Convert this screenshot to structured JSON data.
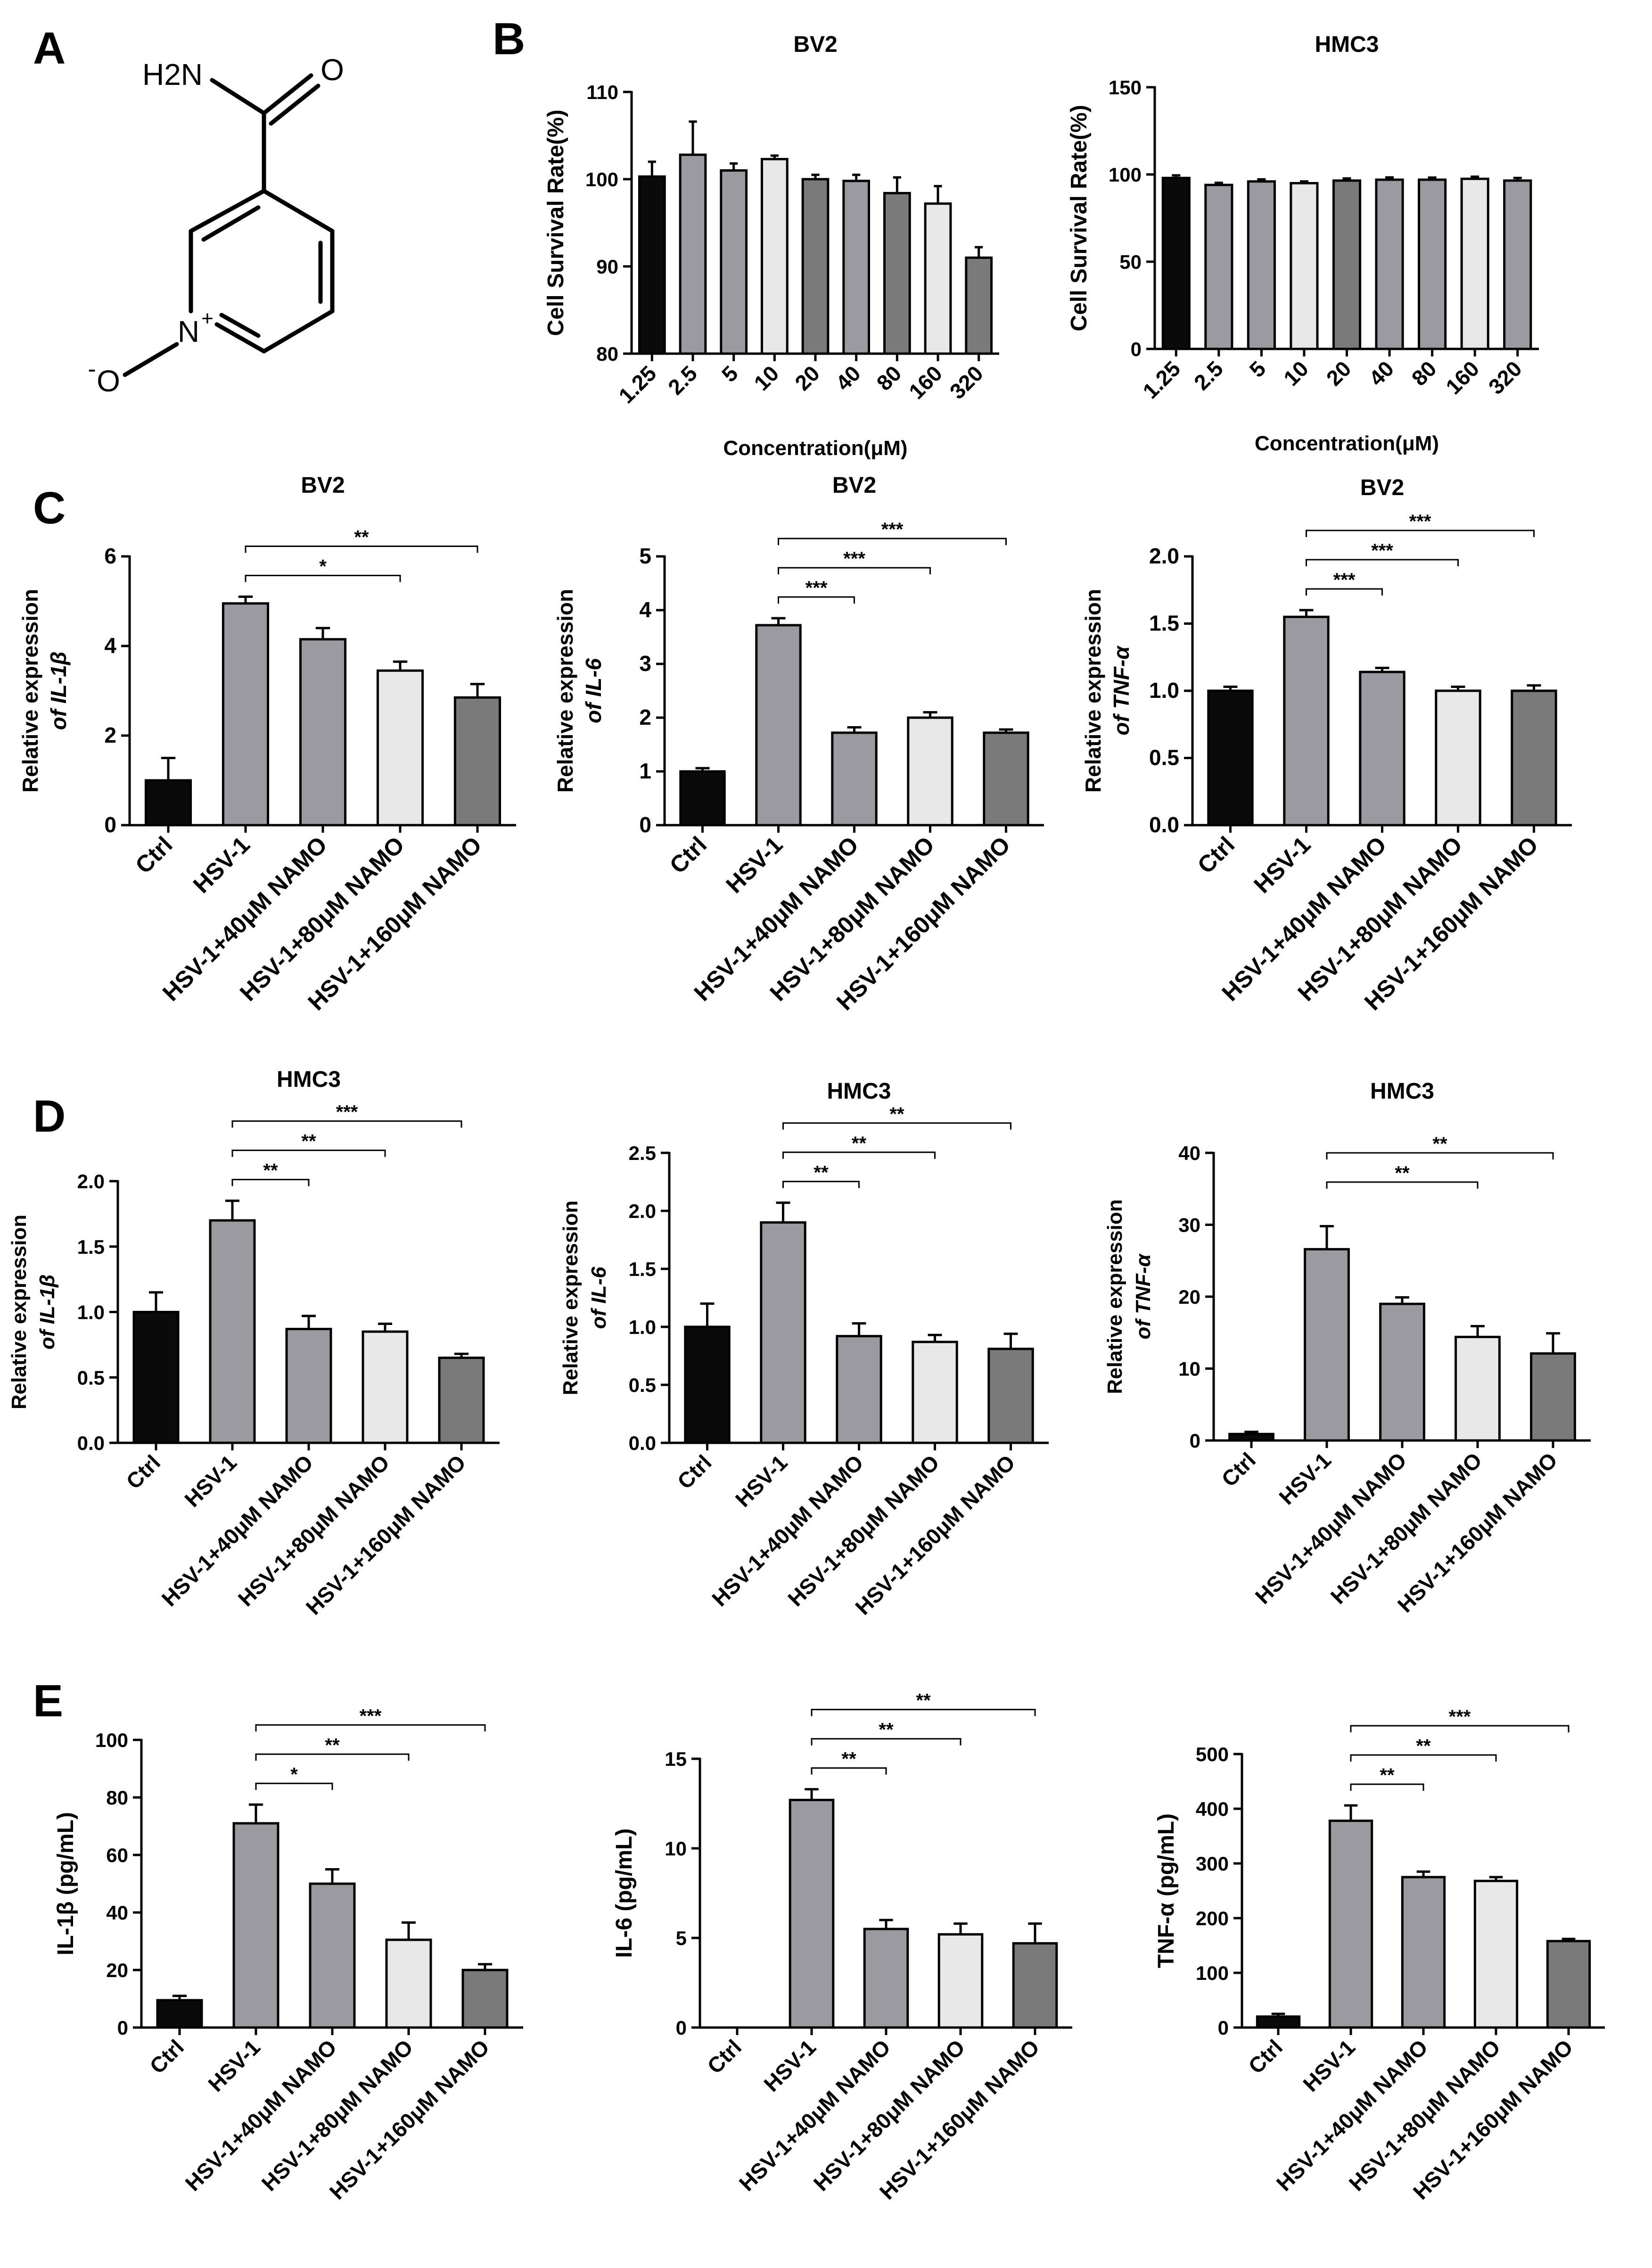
{
  "panels": {
    "a": "A",
    "b": "B",
    "c": "C",
    "d": "D",
    "e": "E"
  },
  "molecule": {
    "amide_n": "H2N",
    "amide_o": "O",
    "ring_n": "N",
    "ring_n_charge": "+",
    "oxide_o": "O",
    "oxide_charge": "-"
  },
  "colors": {
    "black": "#0a0a0a",
    "dark_gray": "#7a7a7a",
    "mid_gray": "#9a9aa0",
    "light_gray": "#e8e8e8"
  },
  "chart_data": [
    {
      "id": "b_bv2",
      "type": "bar",
      "title": "BV2",
      "ylabel": "Cell Survival Rate(%)",
      "ylabel2": "",
      "xlabel": "Concentration(μM)",
      "categories": [
        "1.25",
        "2.5",
        "5",
        "10",
        "20",
        "40",
        "80",
        "160",
        "320"
      ],
      "values": [
        100.3,
        102.8,
        101.0,
        102.3,
        100.0,
        99.8,
        98.4,
        97.2,
        91.0
      ],
      "errors": [
        1.7,
        3.8,
        0.8,
        0.4,
        0.5,
        0.7,
        1.8,
        2.0,
        1.2
      ],
      "ylim": [
        80,
        110
      ],
      "yticks": [
        80,
        90,
        100,
        110
      ],
      "colors": [
        "#0a0a0a",
        "#9a9aa0",
        "#9a9aa0",
        "#e8e8e8",
        "#7a7a7a",
        "#9a9aa0",
        "#7a7a7a",
        "#e8e8e8",
        "#7a7a7a"
      ],
      "sig": []
    },
    {
      "id": "b_hmc3",
      "type": "bar",
      "title": "HMC3",
      "ylabel": "Cell Survival Rate(%)",
      "ylabel2": "",
      "xlabel": "Concentration(μM)",
      "categories": [
        "1.25",
        "2.5",
        "5",
        "10",
        "20",
        "40",
        "80",
        "160",
        "320"
      ],
      "values": [
        98.0,
        94.0,
        96.0,
        95.0,
        96.5,
        97.0,
        97.0,
        97.5,
        96.5
      ],
      "errors": [
        1.5,
        1.2,
        1.2,
        1.0,
        1.2,
        1.3,
        1.2,
        1.2,
        1.5
      ],
      "ylim": [
        0,
        150
      ],
      "yticks": [
        0,
        50,
        100,
        150
      ],
      "colors": [
        "#0a0a0a",
        "#9a9aa0",
        "#9a9aa0",
        "#e8e8e8",
        "#7a7a7a",
        "#9a9aa0",
        "#9a9aa0",
        "#e8e8e8",
        "#9a9aa0"
      ],
      "sig": []
    },
    {
      "id": "c_il1b",
      "type": "bar",
      "title": "BV2",
      "ylabel": "Relative expression",
      "ylabel2": "of IL-1β",
      "xlabel": "",
      "categories": [
        "Ctrl",
        "HSV-1",
        "HSV-1+40μM NAMO",
        "HSV-1+80μM NAMO",
        "HSV-1+160μM NAMO"
      ],
      "values": [
        1.0,
        4.95,
        4.15,
        3.45,
        2.85
      ],
      "errors": [
        0.5,
        0.15,
        0.25,
        0.2,
        0.3
      ],
      "ylim": [
        0,
        6
      ],
      "yticks": [
        0,
        2,
        4,
        6
      ],
      "colors": [
        "#0a0a0a",
        "#9a9aa0",
        "#9a9aa0",
        "#e8e8e8",
        "#7a7a7a"
      ],
      "sig": [
        {
          "from": 1,
          "to": 3,
          "label": "*"
        },
        {
          "from": 1,
          "to": 4,
          "label": "**"
        }
      ]
    },
    {
      "id": "c_il6",
      "type": "bar",
      "title": "BV2",
      "ylabel": "Relative expression",
      "ylabel2": "of IL-6",
      "xlabel": "",
      "categories": [
        "Ctrl",
        "HSV-1",
        "HSV-1+40μM NAMO",
        "HSV-1+80μM NAMO",
        "HSV-1+160μM NAMO"
      ],
      "values": [
        1.0,
        3.72,
        1.72,
        2.0,
        1.72
      ],
      "errors": [
        0.06,
        0.13,
        0.1,
        0.1,
        0.06
      ],
      "ylim": [
        0,
        5
      ],
      "yticks": [
        0,
        1,
        2,
        3,
        4,
        5
      ],
      "colors": [
        "#0a0a0a",
        "#9a9aa0",
        "#9a9aa0",
        "#e8e8e8",
        "#7a7a7a"
      ],
      "sig": [
        {
          "from": 1,
          "to": 2,
          "label": "***"
        },
        {
          "from": 1,
          "to": 3,
          "label": "***"
        },
        {
          "from": 1,
          "to": 4,
          "label": "***"
        }
      ]
    },
    {
      "id": "c_tnf",
      "type": "bar",
      "title": "BV2",
      "ylabel": "Relative expression",
      "ylabel2": "of TNF-α",
      "xlabel": "",
      "categories": [
        "Ctrl",
        "HSV-1",
        "HSV-1+40μM NAMO",
        "HSV-1+80μM NAMO",
        "HSV-1+160μM NAMO"
      ],
      "values": [
        1.0,
        1.55,
        1.14,
        1.0,
        1.0
      ],
      "errors": [
        0.03,
        0.05,
        0.03,
        0.03,
        0.04
      ],
      "ylim": [
        0,
        2
      ],
      "yticks": [
        0.0,
        0.5,
        1.0,
        1.5,
        2.0
      ],
      "colors": [
        "#0a0a0a",
        "#9a9aa0",
        "#9a9aa0",
        "#e8e8e8",
        "#7a7a7a"
      ],
      "sig": [
        {
          "from": 1,
          "to": 2,
          "label": "***"
        },
        {
          "from": 1,
          "to": 3,
          "label": "***"
        },
        {
          "from": 1,
          "to": 4,
          "label": "***"
        }
      ]
    },
    {
      "id": "d_il1b",
      "type": "bar",
      "title": "HMC3",
      "ylabel": "Relative expression",
      "ylabel2": "of IL-1β",
      "xlabel": "",
      "categories": [
        "Ctrl",
        "HSV-1",
        "HSV-1+40μM NAMO",
        "HSV-1+80μM NAMO",
        "HSV-1+160μM NAMO"
      ],
      "values": [
        1.0,
        1.7,
        0.87,
        0.85,
        0.65
      ],
      "errors": [
        0.15,
        0.15,
        0.1,
        0.06,
        0.03
      ],
      "ylim": [
        0,
        2
      ],
      "yticks": [
        0.0,
        0.5,
        1.0,
        1.5,
        2.0
      ],
      "colors": [
        "#0a0a0a",
        "#9a9aa0",
        "#9a9aa0",
        "#e8e8e8",
        "#7a7a7a"
      ],
      "sig": [
        {
          "from": 1,
          "to": 2,
          "label": "**"
        },
        {
          "from": 1,
          "to": 3,
          "label": "**"
        },
        {
          "from": 1,
          "to": 4,
          "label": "***"
        }
      ]
    },
    {
      "id": "d_il6",
      "type": "bar",
      "title": "HMC3",
      "ylabel": "Relative expression",
      "ylabel2": "of IL-6",
      "xlabel": "",
      "categories": [
        "Ctrl",
        "HSV-1",
        "HSV-1+40μM NAMO",
        "HSV-1+80μM NAMO",
        "HSV-1+160μM NAMO"
      ],
      "values": [
        1.0,
        1.9,
        0.92,
        0.87,
        0.81
      ],
      "errors": [
        0.2,
        0.17,
        0.11,
        0.06,
        0.13
      ],
      "ylim": [
        0,
        2.5
      ],
      "yticks": [
        0.0,
        0.5,
        1.0,
        1.5,
        2.0,
        2.5
      ],
      "colors": [
        "#0a0a0a",
        "#9a9aa0",
        "#9a9aa0",
        "#e8e8e8",
        "#7a7a7a"
      ],
      "sig": [
        {
          "from": 1,
          "to": 2,
          "label": "**"
        },
        {
          "from": 1,
          "to": 3,
          "label": "**"
        },
        {
          "from": 1,
          "to": 4,
          "label": "**"
        }
      ]
    },
    {
      "id": "d_tnf",
      "type": "bar",
      "title": "HMC3",
      "ylabel": "Relative expression",
      "ylabel2": "of TNF-α",
      "xlabel": "",
      "categories": [
        "Ctrl",
        "HSV-1",
        "HSV-1+40μM NAMO",
        "HSV-1+80μM NAMO",
        "HSV-1+160μM NAMO"
      ],
      "values": [
        0.9,
        26.6,
        19.0,
        14.4,
        12.1
      ],
      "errors": [
        0.3,
        3.2,
        0.9,
        1.5,
        2.8
      ],
      "ylim": [
        0,
        40
      ],
      "yticks": [
        0,
        10,
        20,
        30,
        40
      ],
      "colors": [
        "#0a0a0a",
        "#9a9aa0",
        "#9a9aa0",
        "#e8e8e8",
        "#7a7a7a"
      ],
      "sig": [
        {
          "from": 1,
          "to": 3,
          "label": "**"
        },
        {
          "from": 1,
          "to": 4,
          "label": "**"
        }
      ]
    },
    {
      "id": "e_il1b",
      "type": "bar",
      "title": "",
      "ylabel": "IL-1β (pg/mL)",
      "ylabel2": "",
      "xlabel": "",
      "categories": [
        "Ctrl",
        "HSV-1",
        "HSV-1+40μM NAMO",
        "HSV-1+80μM NAMO",
        "HSV-1+160μM NAMO"
      ],
      "values": [
        9.5,
        71.0,
        50.0,
        30.5,
        20.0
      ],
      "errors": [
        1.5,
        6.5,
        5.0,
        6.0,
        2.0
      ],
      "ylim": [
        0,
        100
      ],
      "yticks": [
        0,
        20,
        40,
        60,
        80,
        100
      ],
      "colors": [
        "#0a0a0a",
        "#9a9aa0",
        "#9a9aa0",
        "#e8e8e8",
        "#7a7a7a"
      ],
      "sig": [
        {
          "from": 1,
          "to": 2,
          "label": "*"
        },
        {
          "from": 1,
          "to": 3,
          "label": "**"
        },
        {
          "from": 1,
          "to": 4,
          "label": "***"
        }
      ]
    },
    {
      "id": "e_il6",
      "type": "bar",
      "title": "",
      "ylabel": "IL-6 (pg/mL)",
      "ylabel2": "",
      "xlabel": "",
      "categories": [
        "Ctrl",
        "HSV-1",
        "HSV-1+40μM NAMO",
        "HSV-1+80μM NAMO",
        "HSV-1+160μM NAMO"
      ],
      "values": [
        0.0,
        12.7,
        5.5,
        5.2,
        4.7
      ],
      "errors": [
        0.0,
        0.6,
        0.5,
        0.6,
        1.1
      ],
      "ylim": [
        0,
        15
      ],
      "yticks": [
        0,
        5,
        10,
        15
      ],
      "colors": [
        "#0a0a0a",
        "#9a9aa0",
        "#9a9aa0",
        "#e8e8e8",
        "#7a7a7a"
      ],
      "sig": [
        {
          "from": 1,
          "to": 2,
          "label": "**"
        },
        {
          "from": 1,
          "to": 3,
          "label": "**"
        },
        {
          "from": 1,
          "to": 4,
          "label": "**"
        }
      ]
    },
    {
      "id": "e_tnf",
      "type": "bar",
      "title": "",
      "ylabel": "TNF-α (pg/mL)",
      "ylabel2": "",
      "xlabel": "",
      "categories": [
        "Ctrl",
        "HSV-1",
        "HSV-1+40μM NAMO",
        "HSV-1+80μM NAMO",
        "HSV-1+160μM NAMO"
      ],
      "values": [
        20.0,
        378.0,
        275.0,
        268.0,
        158.0
      ],
      "errors": [
        5.0,
        28.0,
        10.0,
        7.0,
        4.0
      ],
      "ylim": [
        0,
        500
      ],
      "yticks": [
        0,
        100,
        200,
        300,
        400,
        500
      ],
      "colors": [
        "#0a0a0a",
        "#9a9aa0",
        "#9a9aa0",
        "#e8e8e8",
        "#7a7a7a"
      ],
      "sig": [
        {
          "from": 1,
          "to": 2,
          "label": "**"
        },
        {
          "from": 1,
          "to": 3,
          "label": "**"
        },
        {
          "from": 1,
          "to": 4,
          "label": "***"
        }
      ]
    }
  ]
}
